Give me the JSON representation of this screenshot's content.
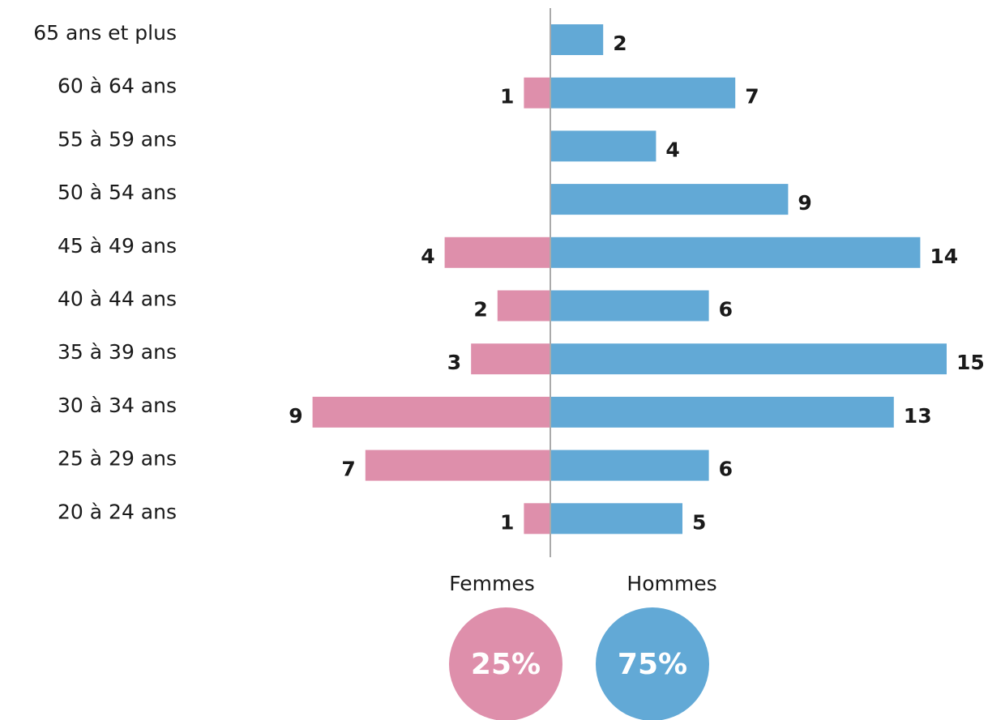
{
  "chart_data": {
    "type": "pyramid",
    "categories": [
      "65 ans et plus",
      "60 à 64 ans",
      "55 à 59 ans",
      "50 à 54 ans",
      "45 à 49 ans",
      "40 à 44 ans",
      "35 à 39 ans",
      "30 à 34 ans",
      "25 à 29 ans",
      "20 à 24 ans"
    ],
    "series": [
      {
        "name": "Femmes",
        "color": "#de8fab",
        "side": "left",
        "values": [
          null,
          1,
          null,
          null,
          4,
          2,
          3,
          9,
          7,
          1
        ]
      },
      {
        "name": "Hommes",
        "color": "#62a9d6",
        "side": "right",
        "values": [
          2,
          7,
          4,
          9,
          14,
          6,
          15,
          13,
          6,
          5
        ]
      }
    ],
    "shares": {
      "values": [
        25,
        75
      ],
      "value_labels": [
        "25%",
        "75%"
      ]
    }
  }
}
